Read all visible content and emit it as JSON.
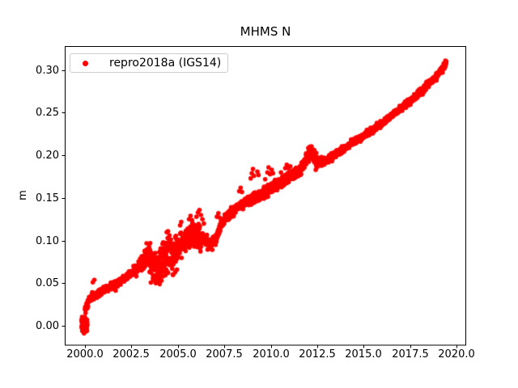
{
  "figure": {
    "background": "#ffffff"
  },
  "chart_data": {
    "type": "scatter",
    "title": "MHMS N",
    "xlabel": "",
    "ylabel": "m",
    "grid": false,
    "xlim": [
      1998.91,
      2020.52
    ],
    "ylim": [
      -0.0228,
      0.3276
    ],
    "xticks": {
      "values": [
        2000.0,
        2002.5,
        2005.0,
        2007.5,
        2010.0,
        2012.5,
        2015.0,
        2017.5,
        2020.0
      ],
      "labels": [
        "2000.0",
        "2002.5",
        "2005.0",
        "2007.5",
        "2010.0",
        "2012.5",
        "2015.0",
        "2017.5",
        "2020.0"
      ]
    },
    "yticks": {
      "values": [
        0.0,
        0.05,
        0.1,
        0.15,
        0.2,
        0.25,
        0.3
      ],
      "labels": [
        "0.00",
        "0.05",
        "0.10",
        "0.15",
        "0.20",
        "0.25",
        "0.30"
      ]
    },
    "legend": {
      "position": "upper left",
      "entries": [
        {
          "label": "repro2018a (IGS14)",
          "marker": "dot",
          "color": "#ff0000"
        }
      ]
    },
    "series": [
      {
        "name": "repro2018a (IGS14)",
        "color": "#ff0000",
        "marker_radius_px": 2.8,
        "seed": 7,
        "start_cluster": {
          "x_range": [
            1999.82,
            2000.12
          ],
          "center": 0.0,
          "spread": 0.0062,
          "min": -0.0105,
          "max": 0.0115,
          "n": 110
        },
        "band": {
          "x_range": [
            2000.0,
            2019.45
          ],
          "n": 2600,
          "mean_anchors": [
            [
              2000.0,
              0.018
            ],
            [
              2000.08,
              0.024
            ],
            [
              2000.2,
              0.03
            ],
            [
              2000.4,
              0.034
            ],
            [
              2000.65,
              0.038
            ],
            [
              2000.95,
              0.042
            ],
            [
              2001.35,
              0.046
            ],
            [
              2001.85,
              0.052
            ],
            [
              2002.25,
              0.058
            ],
            [
              2002.65,
              0.064
            ],
            [
              2002.95,
              0.071
            ],
            [
              2003.15,
              0.077
            ],
            [
              2003.35,
              0.083
            ],
            [
              2003.55,
              0.075
            ],
            [
              2003.75,
              0.068
            ],
            [
              2003.95,
              0.069
            ],
            [
              2004.1,
              0.072
            ],
            [
              2004.3,
              0.078
            ],
            [
              2004.5,
              0.082
            ],
            [
              2004.7,
              0.08
            ],
            [
              2004.9,
              0.088
            ],
            [
              2005.1,
              0.094
            ],
            [
              2005.3,
              0.098
            ],
            [
              2005.55,
              0.102
            ],
            [
              2005.8,
              0.106
            ],
            [
              2006.1,
              0.105
            ],
            [
              2006.45,
              0.1
            ],
            [
              2006.75,
              0.094
            ],
            [
              2007.0,
              0.1
            ],
            [
              2007.3,
              0.117
            ],
            [
              2007.6,
              0.127
            ],
            [
              2007.9,
              0.133
            ],
            [
              2008.3,
              0.14
            ],
            [
              2008.7,
              0.146
            ],
            [
              2009.1,
              0.15
            ],
            [
              2009.5,
              0.154
            ],
            [
              2009.9,
              0.159
            ],
            [
              2010.3,
              0.165
            ],
            [
              2010.7,
              0.17
            ],
            [
              2011.1,
              0.176
            ],
            [
              2011.5,
              0.181
            ],
            [
              2011.8,
              0.191
            ],
            [
              2012.0,
              0.2
            ],
            [
              2012.2,
              0.205
            ],
            [
              2012.35,
              0.197
            ],
            [
              2012.5,
              0.191
            ],
            [
              2012.8,
              0.192
            ],
            [
              2013.2,
              0.197
            ],
            [
              2013.6,
              0.203
            ],
            [
              2014.0,
              0.209
            ],
            [
              2014.5,
              0.216
            ],
            [
              2015.0,
              0.223
            ],
            [
              2015.5,
              0.23
            ],
            [
              2016.0,
              0.238
            ],
            [
              2016.5,
              0.247
            ],
            [
              2017.0,
              0.255
            ],
            [
              2017.4,
              0.262
            ],
            [
              2017.8,
              0.269
            ],
            [
              2018.2,
              0.277
            ],
            [
              2018.6,
              0.285
            ],
            [
              2019.0,
              0.295
            ],
            [
              2019.2,
              0.301
            ],
            [
              2019.45,
              0.308
            ]
          ],
          "noise_anchors": [
            [
              1999.9,
              0.003
            ],
            [
              2000.3,
              0.002
            ],
            [
              2002.2,
              0.002
            ],
            [
              2003.0,
              0.0035
            ],
            [
              2003.45,
              0.009
            ],
            [
              2004.0,
              0.01
            ],
            [
              2004.6,
              0.012
            ],
            [
              2005.0,
              0.008
            ],
            [
              2005.5,
              0.006
            ],
            [
              2006.0,
              0.007
            ],
            [
              2006.5,
              0.004
            ],
            [
              2006.9,
              0.003
            ],
            [
              2007.6,
              0.0025
            ],
            [
              2008.5,
              0.0022
            ],
            [
              2009.3,
              0.0028
            ],
            [
              2010.5,
              0.003
            ],
            [
              2011.5,
              0.0028
            ],
            [
              2011.95,
              0.0035
            ],
            [
              2012.5,
              0.0035
            ],
            [
              2012.9,
              0.0022
            ],
            [
              2014.0,
              0.0018
            ],
            [
              2017.0,
              0.0018
            ],
            [
              2019.45,
              0.0018
            ]
          ]
        },
        "outliers": [
          [
            2000.42,
            0.051
          ],
          [
            2000.5,
            0.054
          ],
          [
            2001.65,
            0.0415
          ],
          [
            2003.72,
            0.054
          ],
          [
            2003.8,
            0.051
          ],
          [
            2003.88,
            0.057
          ],
          [
            2004.02,
            0.049
          ],
          [
            2004.12,
            0.053
          ],
          [
            2004.45,
            0.103
          ],
          [
            2004.55,
            0.106
          ],
          [
            2004.62,
            0.101
          ],
          [
            2004.75,
            0.06
          ],
          [
            2004.85,
            0.063
          ],
          [
            2004.95,
            0.066
          ],
          [
            2005.12,
            0.118
          ],
          [
            2005.18,
            0.122
          ],
          [
            2005.6,
            0.125
          ],
          [
            2005.68,
            0.129
          ],
          [
            2005.76,
            0.124
          ],
          [
            2006.0,
            0.128
          ],
          [
            2006.08,
            0.133
          ],
          [
            2006.16,
            0.136
          ],
          [
            2006.24,
            0.13
          ],
          [
            2006.32,
            0.125
          ],
          [
            2006.4,
            0.12
          ],
          [
            2007.1,
            0.128
          ],
          [
            2007.18,
            0.132
          ],
          [
            2007.25,
            0.127
          ],
          [
            2008.3,
            0.158
          ],
          [
            2008.38,
            0.162
          ],
          [
            2008.45,
            0.157
          ],
          [
            2008.92,
            0.173
          ],
          [
            2008.98,
            0.179
          ],
          [
            2009.04,
            0.184
          ],
          [
            2009.1,
            0.176
          ],
          [
            2009.28,
            0.181
          ],
          [
            2009.34,
            0.177
          ],
          [
            2009.7,
            0.172
          ],
          [
            2009.82,
            0.18
          ],
          [
            2009.88,
            0.186
          ],
          [
            2009.96,
            0.178
          ],
          [
            2010.05,
            0.183
          ],
          [
            2010.12,
            0.179
          ],
          [
            2010.55,
            0.18
          ],
          [
            2010.78,
            0.185
          ],
          [
            2010.86,
            0.189
          ],
          [
            2010.95,
            0.185
          ],
          [
            2011.05,
            0.187
          ],
          [
            2012.1,
            0.21
          ],
          [
            2012.18,
            0.207
          ],
          [
            2012.42,
            0.183
          ],
          [
            2019.4,
            0.311
          ]
        ]
      }
    ]
  }
}
